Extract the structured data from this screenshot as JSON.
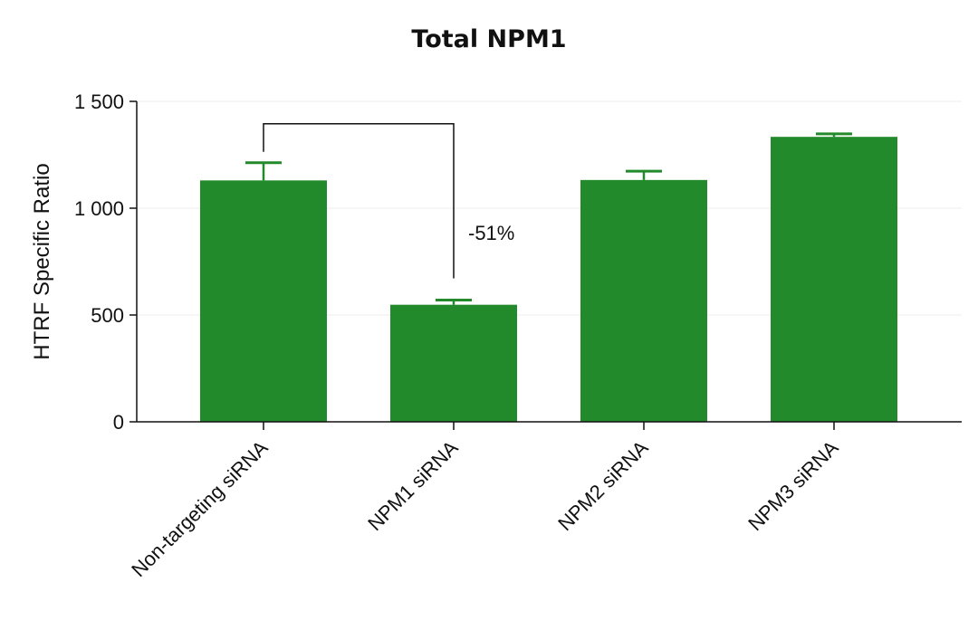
{
  "chart_data": {
    "type": "bar",
    "title": "Total NPM1",
    "ylabel": "HTRF Specific Ratio",
    "xlabel": "",
    "ylim": [
      0,
      1500
    ],
    "yticks": [
      0,
      500,
      1000,
      1500
    ],
    "ytick_labels": [
      "0",
      "500",
      "1 000",
      "1 500"
    ],
    "categories": [
      "Non-targeting siRNA",
      "NPM1 siRNA",
      "NPM2 siRNA",
      "NPM3 siRNA"
    ],
    "values": [
      1130,
      548,
      1132,
      1334
    ],
    "error_upper": [
      1213,
      570,
      1173,
      1348
    ],
    "grid": true,
    "bar_color": "#238a2c",
    "annotation": {
      "text": "-51%",
      "from_category": 0,
      "to_category": 1,
      "bracket_top": 1395
    }
  }
}
